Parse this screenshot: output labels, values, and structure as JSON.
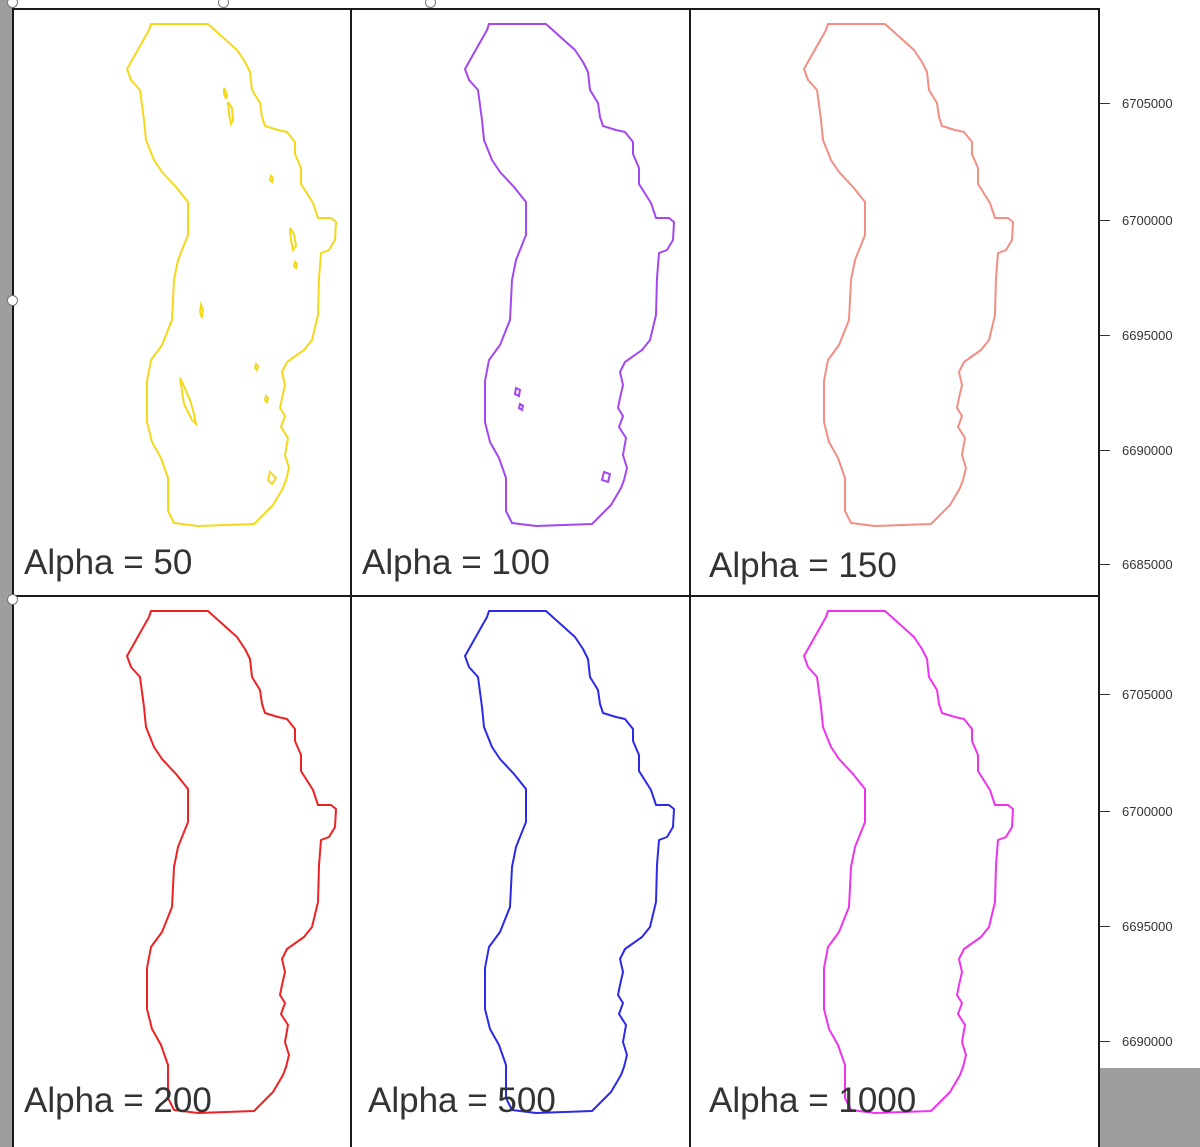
{
  "panels": [
    {
      "label": "Alpha = 50",
      "color": "#f4d81c"
    },
    {
      "label": "Alpha = 100",
      "color": "#a347f0"
    },
    {
      "label": "Alpha = 150",
      "color": "#f28e84"
    },
    {
      "label": "Alpha = 200",
      "color": "#ee2222"
    },
    {
      "label": "Alpha = 500",
      "color": "#2a2ae8"
    },
    {
      "label": "Alpha = 1000",
      "color": "#ee33ee"
    }
  ],
  "axis_top": [
    "6705000",
    "6700000",
    "6695000",
    "6690000",
    "6685000"
  ],
  "axis_bottom": [
    "6705000",
    "6700000",
    "6695000",
    "6690000"
  ]
}
